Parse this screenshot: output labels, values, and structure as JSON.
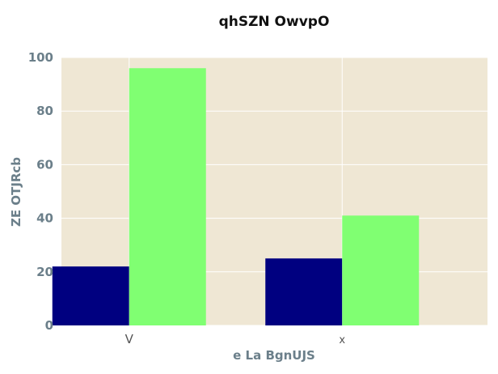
{
  "chart_data": {
    "type": "bar",
    "title": "qhSZN OwvpO",
    "xlabel": "e La  BgnUJS",
    "ylabel": "ZE  OTJRcb",
    "categories": [
      "V",
      "x"
    ],
    "series": [
      {
        "values": [
          22,
          25
        ],
        "color": "#000080"
      },
      {
        "values": [
          96,
          41
        ],
        "color": "#80ff72"
      }
    ],
    "ylim": [
      0,
      100
    ],
    "yticks": [
      0,
      20,
      40,
      60,
      80,
      100
    ],
    "grid": true,
    "plot_background": "#efe7d4",
    "grid_color": "#ffffff"
  }
}
